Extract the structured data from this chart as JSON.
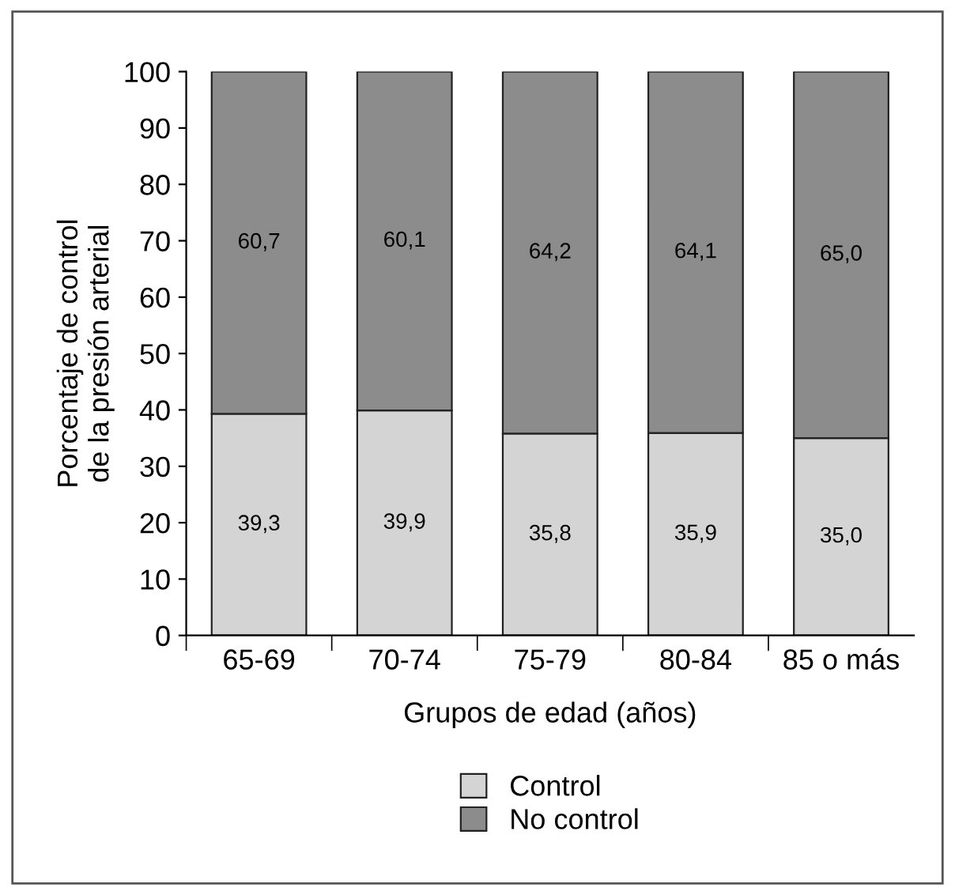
{
  "chart_data": {
    "type": "bar",
    "stacked": true,
    "xlabel": "Grupos de edad (años)",
    "ylabel": "Porcentaje de control\nde la presión arterial",
    "categories": [
      "65-69",
      "70-74",
      "75-79",
      "80-84",
      "85 o más"
    ],
    "series": [
      {
        "name": "Control",
        "color": "#d4d4d4",
        "values": [
          39.3,
          39.9,
          35.8,
          35.9,
          35.0
        ],
        "value_labels": [
          "39,3",
          "39,9",
          "35,8",
          "35,9",
          "35,0"
        ]
      },
      {
        "name": "No control",
        "color": "#8c8c8c",
        "values": [
          60.7,
          60.1,
          64.2,
          64.1,
          65.0
        ],
        "value_labels": [
          "60,7",
          "60,1",
          "64,2",
          "64,1",
          "65,0"
        ]
      }
    ],
    "ylim": [
      0,
      100
    ],
    "yticks": [
      0,
      10,
      20,
      30,
      40,
      50,
      60,
      70,
      80,
      90,
      100
    ],
    "grid": false,
    "legend": "bottom"
  }
}
